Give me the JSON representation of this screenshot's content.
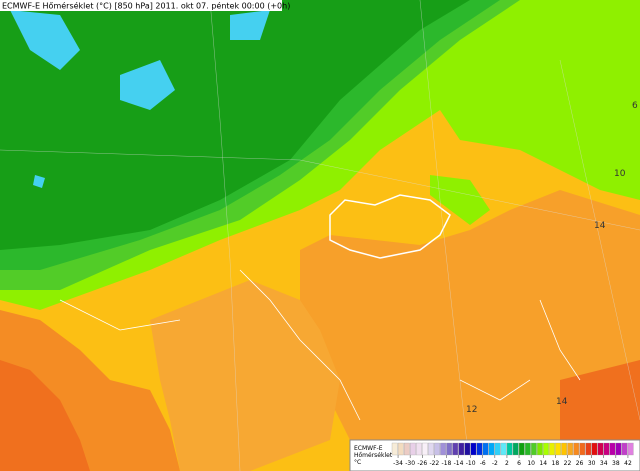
{
  "header": {
    "title": "ECMWF-E Hőmérséklet (°C) [850 hPa] 2011. okt 07. péntek 00:00 (+0h)"
  },
  "map": {
    "contour_labels": [
      6,
      10,
      14,
      12,
      14
    ]
  },
  "legend": {
    "title_lines": [
      "ECMWF-E",
      "Hőmérséklet",
      "°C"
    ],
    "ticks": [
      -34,
      -30,
      -26,
      -22,
      -18,
      -14,
      -10,
      -6,
      -2,
      2,
      6,
      10,
      14,
      18,
      22,
      26,
      30,
      34,
      38,
      42
    ],
    "colors": [
      "#f7ecd8",
      "#f3dcc0",
      "#ecccc4",
      "#e8d0e8",
      "#f0e0f0",
      "#f8f0f8",
      "#e0d8f0",
      "#c8c0e8",
      "#a090d8",
      "#8070c8",
      "#6040b0",
      "#4020a0",
      "#2010a0",
      "#0000c8",
      "#0030e0",
      "#0070f0",
      "#00a8f8",
      "#30d0f8",
      "#60e8f8",
      "#00c8a0",
      "#00a860",
      "#10a010",
      "#28b828",
      "#50cc28",
      "#80e800",
      "#a8ff00",
      "#e8f000",
      "#ffe000",
      "#ffc400",
      "#f8a820",
      "#f78a1e",
      "#f06a1e",
      "#e84018",
      "#e01010",
      "#d00050",
      "#c80080",
      "#b800a8",
      "#a000b8",
      "#c040c8",
      "#e080e0"
    ]
  }
}
